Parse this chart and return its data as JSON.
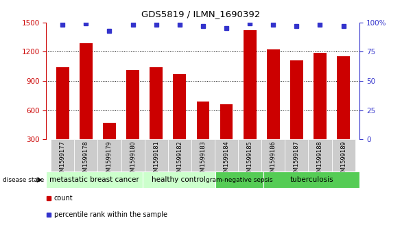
{
  "title": "GDS5819 / ILMN_1690392",
  "samples": [
    "GSM1599177",
    "GSM1599178",
    "GSM1599179",
    "GSM1599180",
    "GSM1599181",
    "GSM1599182",
    "GSM1599183",
    "GSM1599184",
    "GSM1599185",
    "GSM1599186",
    "GSM1599187",
    "GSM1599188",
    "GSM1599189"
  ],
  "counts": [
    1040,
    1290,
    470,
    1010,
    1040,
    970,
    690,
    660,
    1420,
    1220,
    1110,
    1185,
    1155
  ],
  "percentile_ranks": [
    98,
    99,
    93,
    98,
    98,
    98,
    97,
    95,
    99,
    98,
    97,
    98,
    97
  ],
  "bar_color": "#cc0000",
  "dot_color": "#3333cc",
  "ylim_left": [
    300,
    1500
  ],
  "ylim_right": [
    0,
    100
  ],
  "yticks_left": [
    300,
    600,
    900,
    1200,
    1500
  ],
  "yticks_right": [
    0,
    25,
    50,
    75,
    100
  ],
  "grid_values": [
    600,
    900,
    1200
  ],
  "groups": [
    {
      "label": "metastatic breast cancer",
      "start": 0,
      "end": 4,
      "color": "#ccffcc"
    },
    {
      "label": "healthy control",
      "start": 4,
      "end": 7,
      "color": "#ccffcc"
    },
    {
      "label": "gram-negative sepsis",
      "start": 7,
      "end": 9,
      "color": "#55cc55"
    },
    {
      "label": "tuberculosis",
      "start": 9,
      "end": 13,
      "color": "#55cc55"
    }
  ],
  "disease_state_label": "disease state",
  "legend_count_label": "count",
  "legend_percentile_label": "percentile rank within the sample",
  "left_axis_color": "#cc0000",
  "right_axis_color": "#3333cc",
  "bar_width": 0.55,
  "sample_label_bgcolor": "#cccccc"
}
